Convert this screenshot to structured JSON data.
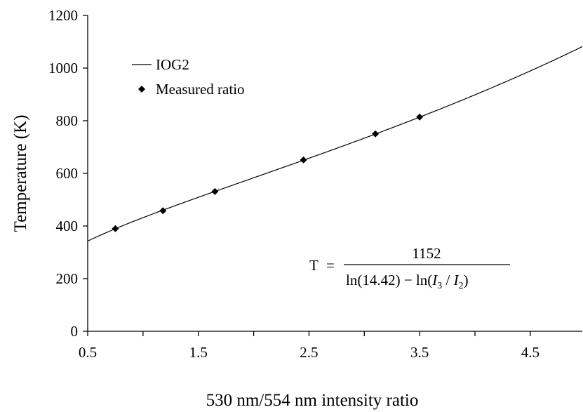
{
  "chart_data": {
    "type": "line",
    "title": "",
    "xlabel": "530 nm/554 nm intensity ratio",
    "ylabel": "Temperature (K)",
    "xlim": [
      0.5,
      4.97
    ],
    "ylim": [
      0,
      1200
    ],
    "xticks": [
      0.5,
      1.5,
      2.5,
      3.5,
      4.5
    ],
    "xtick_labels": [
      "0.5",
      "1.5",
      "2.5",
      "3.5",
      "4.5"
    ],
    "yticks": [
      0,
      200,
      400,
      600,
      800,
      1000,
      1200
    ],
    "ytick_labels": [
      "0",
      "200",
      "400",
      "600",
      "800",
      "1000",
      "1200"
    ],
    "grid": false,
    "legend_position": "top-left",
    "series": [
      {
        "name": "IOG2",
        "kind": "line",
        "color": "#000000",
        "function": {
          "numerator": 1152,
          "a": 14.42
        }
      },
      {
        "name": "Measured ratio",
        "kind": "scatter",
        "marker": "diamond",
        "color": "#000000",
        "x": [
          0.75,
          1.18,
          1.65,
          2.45,
          3.1,
          3.5
        ],
        "y": [
          390,
          458,
          531,
          651,
          750,
          814
        ]
      }
    ],
    "annotation": {
      "lhs": "T",
      "equals": "=",
      "numerator": "1152",
      "denominator": {
        "part1": "ln(14.42) − ln(",
        "var1": "I",
        "sub1": "3",
        "slash": " / ",
        "var2": "I",
        "sub2": "2",
        "part2": ")"
      }
    }
  }
}
